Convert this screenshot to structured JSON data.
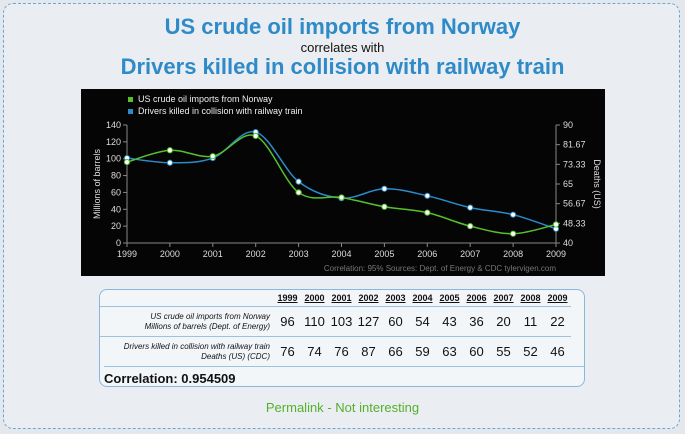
{
  "title_a": "US crude oil imports from Norway",
  "correlates": "correlates with",
  "title_b": "Drivers killed in collision with railway train",
  "chart_data": {
    "type": "line",
    "x": [
      1999,
      2000,
      2001,
      2002,
      2003,
      2004,
      2005,
      2006,
      2007,
      2008,
      2009
    ],
    "series": [
      {
        "name": "US crude oil imports from Norway",
        "axis": "left",
        "color": "#55c12c",
        "values": [
          96,
          110,
          103,
          127,
          60,
          54,
          43,
          36,
          20,
          11,
          22
        ]
      },
      {
        "name": "Drivers killed in collision with railway train",
        "axis": "right",
        "color": "#2b8ccc",
        "values": [
          76,
          74,
          76,
          87,
          66,
          59,
          63,
          60,
          55,
          52,
          46
        ]
      }
    ],
    "ylabel_left": "Millions of barrels",
    "ylabel_right": "Deaths (US)",
    "ylim_left": [
      0,
      140
    ],
    "yticks_left": [
      "0",
      "20",
      "40",
      "60",
      "80",
      "100",
      "120",
      "140"
    ],
    "ylim_right": [
      40,
      90
    ],
    "yticks_right": [
      "40",
      "48.33",
      "56.67",
      "65",
      "73.33",
      "81.67",
      "90"
    ],
    "xticks": [
      "1999",
      "2000",
      "2001",
      "2002",
      "2003",
      "2004",
      "2005",
      "2006",
      "2007",
      "2008",
      "2009"
    ],
    "legend_position": "top-left",
    "footer": "Correlation: 95%   Sources: Dept. of Energy & CDC   tylervigen.com"
  },
  "table": {
    "years": [
      "1999",
      "2000",
      "2001",
      "2002",
      "2003",
      "2004",
      "2005",
      "2006",
      "2007",
      "2008",
      "2009"
    ],
    "row1_label_a": "US crude oil imports from Norway",
    "row1_label_b": "Millions of barrels (Dept. of Energy)",
    "row1": [
      "96",
      "110",
      "103",
      "127",
      "60",
      "54",
      "43",
      "36",
      "20",
      "11",
      "22"
    ],
    "row2_label_a": "Drivers killed in collision with railway train",
    "row2_label_b": "Deaths (US) (CDC)",
    "row2": [
      "76",
      "74",
      "76",
      "87",
      "66",
      "59",
      "63",
      "60",
      "55",
      "52",
      "46"
    ],
    "correlation": "Correlation: 0.954509"
  },
  "links": {
    "permalink": "Permalink",
    "separator": "-",
    "not_interesting": "Not interesting"
  }
}
